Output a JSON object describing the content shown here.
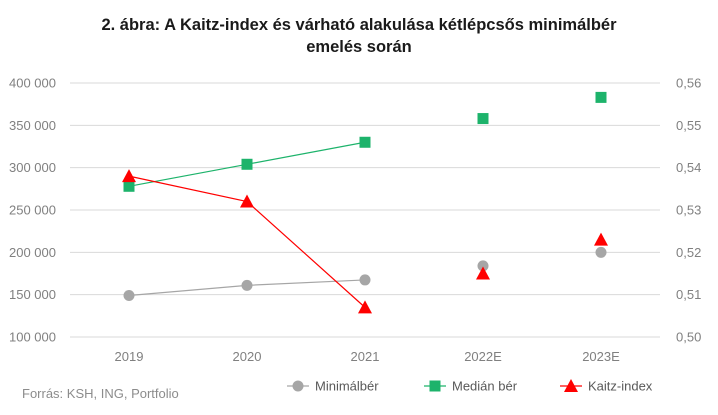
{
  "title_lines": [
    "2. ábra: A Kaitz-index és várható alakulása kétlépcsős minimálbér",
    "emelés során"
  ],
  "source": "Forrás: KSH, ING, Portfolio",
  "colors": {
    "minimalber": "#a6a6a6",
    "median": "#1db36b",
    "kaitz": "#ff0000",
    "grid": "#d9d9d9"
  },
  "chart_data": {
    "type": "line",
    "title": "2. ábra: A Kaitz-index és várható alakulása kétlépcsős minimálbér emelés során",
    "categories": [
      "2019",
      "2020",
      "2021",
      "2022E",
      "2023E"
    ],
    "left_axis": {
      "ylim": [
        100000,
        400000
      ],
      "ticks": [
        100000,
        150000,
        200000,
        250000,
        300000,
        350000,
        400000
      ],
      "tick_labels": [
        "100 000",
        "150 000",
        "200 000",
        "250 000",
        "300 000",
        "350 000",
        "400 000"
      ]
    },
    "right_axis": {
      "ylim": [
        0.5,
        0.56
      ],
      "ticks": [
        0.5,
        0.51,
        0.52,
        0.53,
        0.54,
        0.55,
        0.56
      ],
      "tick_labels": [
        "0,50",
        "0,51",
        "0,52",
        "0,53",
        "0,54",
        "0,55",
        "0,56"
      ]
    },
    "grid": true,
    "legend_position": "bottom",
    "series": [
      {
        "name": "Minimálbér",
        "axis": "left",
        "marker": "circle",
        "line_until": 2,
        "values": [
          149000,
          161000,
          167400,
          184000,
          200000
        ]
      },
      {
        "name": "Medián bér",
        "axis": "left",
        "marker": "square",
        "line_until": 2,
        "values": [
          278000,
          304000,
          330000,
          358000,
          383000
        ]
      },
      {
        "name": "Kaitz-index",
        "axis": "right",
        "marker": "triangle",
        "line_until": 2,
        "values": [
          0.538,
          0.532,
          0.507,
          0.515,
          0.523
        ]
      }
    ]
  }
}
